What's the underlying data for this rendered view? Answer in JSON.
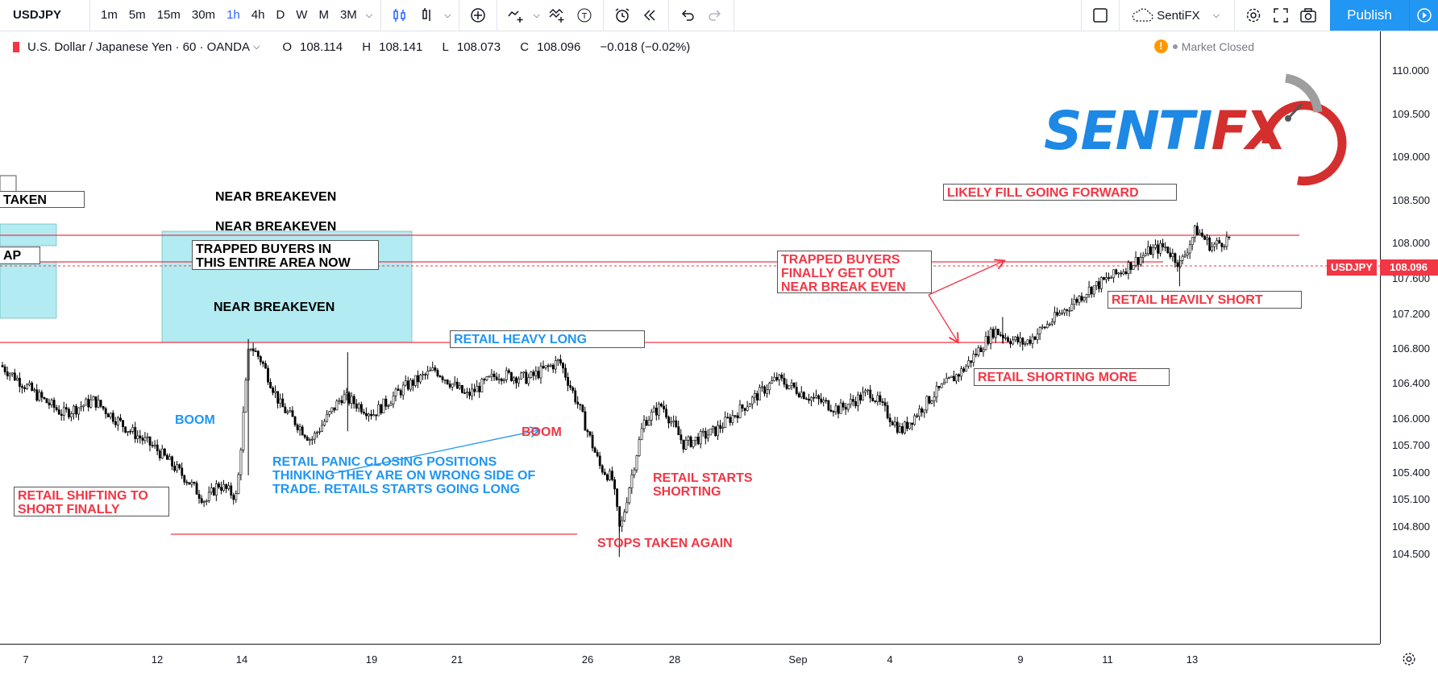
{
  "toolbar": {
    "symbol": "USDJPY",
    "intervals": [
      "1m",
      "5m",
      "15m",
      "30m",
      "1h",
      "4h",
      "D",
      "W",
      "M",
      "3M"
    ],
    "active_interval": "1h",
    "layout_name": "SentiFX",
    "publish_label": "Publish"
  },
  "legend": {
    "title": "U.S. Dollar / Japanese Yen · 60 · OANDA",
    "open_key": "O",
    "open": "108.114",
    "high_key": "H",
    "high": "108.141",
    "low_key": "L",
    "low": "108.073",
    "close_key": "C",
    "close": "108.096",
    "change": "−0.018 (−0.02%)"
  },
  "market_status": "Market Closed",
  "logo": {
    "text_blue": "SENTI",
    "text_red": "FX"
  },
  "price_axis": {
    "ticks": [
      "110.000",
      "109.500",
      "109.000",
      "108.500",
      "108.000",
      "107.600",
      "107.200",
      "106.800",
      "106.400",
      "106.000",
      "105.700",
      "105.400",
      "105.100",
      "104.800",
      "104.500"
    ],
    "symbol_tag": "USDJPY",
    "last_price": "108.096"
  },
  "time_axis": {
    "ticks": [
      "7",
      "12",
      "14",
      "19",
      "21",
      "26",
      "28",
      "Sep",
      "4",
      "9",
      "11",
      "13"
    ]
  },
  "annotations": {
    "taken": "TAKEN",
    "ap": "AP",
    "near_breakeven_1": "NEAR BREAKEVEN",
    "near_breakeven_2": "NEAR BREAKEVEN",
    "near_breakeven_3": "NEAR BREAKEVEN",
    "trapped_area_1": "TRAPPED BUYERS IN",
    "trapped_area_2": "THIS ENTIRE AREA NOW",
    "likely_fill": "LIKELY FILL GOING FORWARD",
    "trapped_out_1": "TRAPPED BUYERS",
    "trapped_out_2": "FINALLY GET OUT",
    "trapped_out_3": "NEAR BREAK EVEN",
    "retail_heavily_short": "RETAIL HEAVILY SHORT",
    "retail_heavy_long": "RETAIL HEAVY LONG",
    "retail_shorting_more": "RETAIL SHORTING MORE",
    "boom_blue": "BOOM",
    "boom_red": "BOOM",
    "panic_1": "RETAIL PANIC CLOSING POSITIONS",
    "panic_2": "THINKING THEY ARE ON WRONG SIDE OF",
    "panic_3": "TRADE. RETAILS STARTS GOING LONG",
    "retail_starts_1": "RETAIL STARTS",
    "retail_starts_2": "SHORTING",
    "shifting_1": "RETAIL SHIFTING TO",
    "shifting_2": "SHORT FINALLY",
    "stops_again": "STOPS TAKEN AGAIN"
  },
  "chart_data": {
    "type": "candlestick",
    "symbol": "USDJPY",
    "interval": "60",
    "x_start": "Aug 6",
    "x_end": "Sep 13",
    "ylim": [
      104.4,
      110.2
    ],
    "last_price": 108.096,
    "path": [
      [
        6.0,
        106.65
      ],
      [
        7.2,
        106.3
      ],
      [
        8.0,
        106.1
      ],
      [
        9.0,
        106.25
      ],
      [
        10.0,
        105.95
      ],
      [
        11.0,
        105.7
      ],
      [
        12.0,
        105.35
      ],
      [
        12.6,
        105.1
      ],
      [
        13.0,
        105.3
      ],
      [
        13.6,
        105.15
      ],
      [
        14.0,
        106.9
      ],
      [
        14.4,
        106.7
      ],
      [
        15.0,
        106.2
      ],
      [
        16.0,
        105.8
      ],
      [
        17.0,
        106.3
      ],
      [
        18.0,
        106.1
      ],
      [
        19.0,
        106.4
      ],
      [
        20.0,
        106.6
      ],
      [
        21.0,
        106.3
      ],
      [
        22.0,
        106.55
      ],
      [
        23.0,
        106.5
      ],
      [
        24.0,
        106.7
      ],
      [
        24.6,
        106.2
      ],
      [
        25.3,
        105.5
      ],
      [
        25.7,
        105.35
      ],
      [
        25.95,
        104.75
      ],
      [
        26.2,
        105.2
      ],
      [
        26.7,
        106.0
      ],
      [
        27.3,
        106.2
      ],
      [
        28.0,
        105.75
      ],
      [
        29.0,
        105.9
      ],
      [
        30.0,
        106.2
      ],
      [
        31.0,
        106.5
      ],
      [
        32.0,
        106.3
      ],
      [
        33.0,
        106.15
      ],
      [
        34.0,
        106.35
      ],
      [
        35.0,
        105.9
      ],
      [
        36.0,
        106.3
      ],
      [
        37.0,
        106.6
      ],
      [
        38.0,
        107.05
      ],
      [
        38.5,
        106.95
      ],
      [
        39.0,
        106.9
      ],
      [
        40.0,
        107.2
      ],
      [
        41.0,
        107.5
      ],
      [
        42.0,
        107.7
      ],
      [
        43.0,
        107.95
      ],
      [
        43.5,
        108.0
      ],
      [
        44.0,
        107.8
      ],
      [
        44.5,
        108.2
      ],
      [
        45.0,
        108.0
      ],
      [
        45.6,
        108.1
      ]
    ],
    "levels": [
      108.45,
      108.15,
      107.25,
      105.1
    ]
  }
}
